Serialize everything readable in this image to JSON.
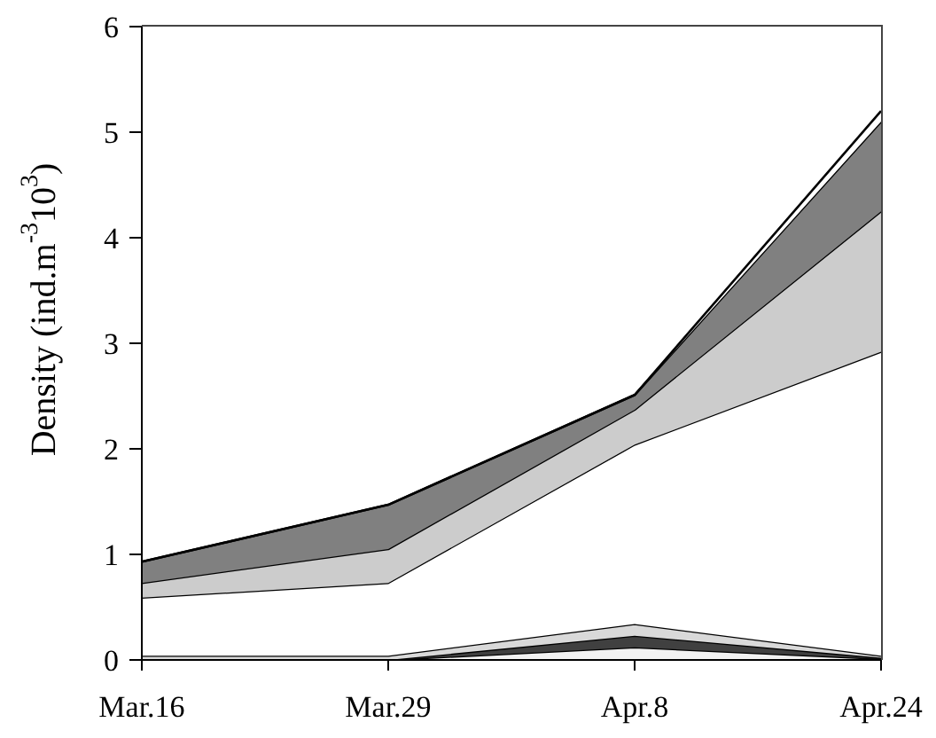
{
  "chart_data": {
    "type": "area",
    "stacked": true,
    "ylabel": "Density (ind.m$^{-3}$10$^{3}$)",
    "categories": [
      "Mar.16",
      "Mar.29",
      "Apr.8",
      "Apr.24"
    ],
    "ylim": [
      0,
      6
    ],
    "yticks": [
      0,
      1,
      2,
      3,
      4,
      5,
      6
    ],
    "series": [
      {
        "color": "#f2f2f2",
        "values": [
          0,
          0,
          0.12,
          0.01
        ]
      },
      {
        "color": "#404040",
        "values": [
          0,
          0,
          0.11,
          0.01
        ]
      },
      {
        "color": "#d9d9d9",
        "values": [
          0.04,
          0.04,
          0.11,
          0.02
        ]
      },
      {
        "color": "#ffffff",
        "values": [
          0.55,
          0.69,
          1.7,
          2.88
        ]
      },
      {
        "color": "#cccccc",
        "values": [
          0.14,
          0.32,
          0.33,
          1.33
        ]
      },
      {
        "color": "#808080",
        "values": [
          0.2,
          0.42,
          0.14,
          0.85
        ]
      },
      {
        "color": "#ffffff",
        "values": [
          0,
          0,
          0,
          0.1
        ]
      }
    ]
  }
}
